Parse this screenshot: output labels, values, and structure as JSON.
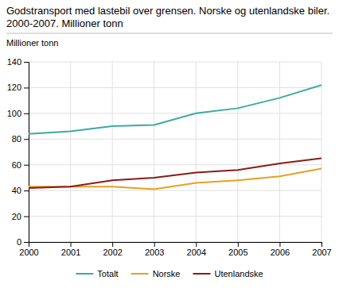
{
  "chart_data": {
    "type": "line",
    "title": "Godstransport med lastebil over grensen. Norske og utenlandske biler. 2000-2007. Millioner tonn",
    "y_label": "Millioner tonn",
    "x": [
      2000,
      2001,
      2002,
      2003,
      2004,
      2005,
      2006,
      2007
    ],
    "series": [
      {
        "name": "Totalt",
        "color": "#3aaca0",
        "values": [
          84,
          86,
          90,
          91,
          100,
          104,
          112,
          122
        ]
      },
      {
        "name": "Norske",
        "color": "#e8a020",
        "values": [
          43,
          43,
          43,
          41,
          46,
          48,
          51,
          57
        ]
      },
      {
        "name": "Utenlandske",
        "color": "#8b1a1a",
        "values": [
          42,
          43,
          48,
          50,
          54,
          56,
          61,
          65
        ]
      }
    ],
    "xlim": [
      2000,
      2007
    ],
    "xticks": [
      2000,
      2001,
      2002,
      2003,
      2004,
      2005,
      2006,
      2007
    ],
    "ylim": [
      0,
      140
    ],
    "yticks": [
      0,
      20,
      40,
      60,
      80,
      100,
      120,
      140
    ],
    "grid": true,
    "legend": "bottom"
  }
}
